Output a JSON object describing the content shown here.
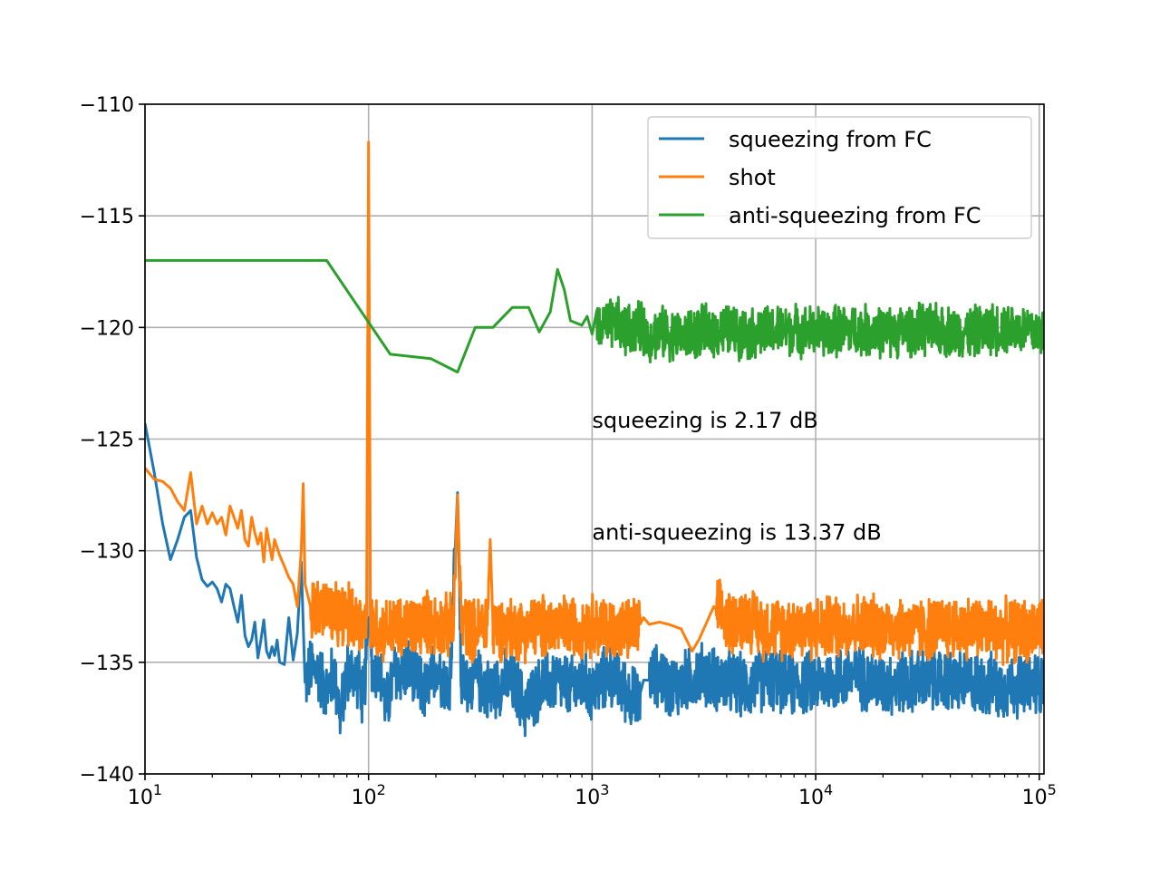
{
  "chart_data": {
    "type": "line",
    "title": "",
    "xlabel": "",
    "ylabel": "",
    "xscale": "log",
    "xlim": [
      10,
      105000
    ],
    "ylim": [
      -140,
      -110
    ],
    "grid": true,
    "legend_placement": "top-right",
    "x_ticks": [
      {
        "value": 10,
        "base": "10",
        "exp": "1"
      },
      {
        "value": 100,
        "base": "10",
        "exp": "2"
      },
      {
        "value": 1000,
        "base": "10",
        "exp": "3"
      },
      {
        "value": 10000,
        "base": "10",
        "exp": "4"
      },
      {
        "value": 100000,
        "base": "10",
        "exp": "5"
      }
    ],
    "y_ticks": [
      {
        "value": -110,
        "label": "−110"
      },
      {
        "value": -115,
        "label": "−115"
      },
      {
        "value": -120,
        "label": "−120"
      },
      {
        "value": -125,
        "label": "−125"
      },
      {
        "value": -130,
        "label": "−130"
      },
      {
        "value": -135,
        "label": "−135"
      },
      {
        "value": -140,
        "label": "−140"
      }
    ],
    "series": [
      {
        "name": "squeezing from FC",
        "color": "#1f77b4",
        "points": [
          [
            10,
            -124.3
          ],
          [
            11,
            -126.5
          ],
          [
            12,
            -128.8
          ],
          [
            13,
            -130.4
          ],
          [
            14,
            -129.5
          ],
          [
            15,
            -128.5
          ],
          [
            16,
            -128.2
          ],
          [
            17,
            -130.3
          ],
          [
            18,
            -131.3
          ],
          [
            19,
            -131.6
          ],
          [
            20,
            -131.4
          ],
          [
            21,
            -131.7
          ],
          [
            22,
            -132.3
          ],
          [
            23,
            -131.5
          ],
          [
            24,
            -131.7
          ],
          [
            25,
            -132.5
          ],
          [
            26,
            -133.2
          ],
          [
            27,
            -132.0
          ],
          [
            28,
            -133.8
          ],
          [
            29,
            -134.3
          ],
          [
            30,
            -134.0
          ],
          [
            31,
            -133.2
          ],
          [
            32,
            -134.8
          ],
          [
            33,
            -134.0
          ],
          [
            34,
            -133.1
          ],
          [
            35,
            -134.5
          ],
          [
            36,
            -134.8
          ],
          [
            37,
            -134.3
          ],
          [
            38,
            -134.7
          ],
          [
            39,
            -134.0
          ],
          [
            40,
            -135.0
          ],
          [
            42,
            -135.1
          ],
          [
            44,
            -133.0
          ],
          [
            46,
            -134.9
          ],
          [
            48,
            -133.7
          ],
          [
            50,
            -130.5
          ],
          [
            52,
            -135.9
          ],
          [
            55,
            -135.3
          ],
          [
            60,
            -135.5
          ],
          [
            65,
            -136.3
          ],
          [
            70,
            -135.4
          ],
          [
            75,
            -137.4
          ],
          [
            80,
            -135.4
          ],
          [
            90,
            -135.6
          ],
          [
            95,
            -136.8
          ],
          [
            100,
            -133.0
          ],
          [
            105,
            -135.6
          ],
          [
            110,
            -135.1
          ],
          [
            120,
            -137.0
          ],
          [
            130,
            -135.5
          ],
          [
            150,
            -135.3
          ],
          [
            180,
            -136.4
          ],
          [
            200,
            -135.1
          ],
          [
            230,
            -136.2
          ],
          [
            250,
            -127.4
          ],
          [
            260,
            -136.0
          ],
          [
            300,
            -135.7
          ],
          [
            350,
            -136.3
          ],
          [
            400,
            -135.8
          ],
          [
            450,
            -136.0
          ],
          [
            500,
            -137.0
          ],
          [
            600,
            -136.0
          ],
          [
            700,
            -135.8
          ],
          [
            800,
            -136.2
          ],
          [
            900,
            -135.9
          ],
          [
            1000,
            -136.3
          ],
          [
            1200,
            -135.5
          ],
          [
            1400,
            -136.2
          ],
          [
            1600,
            -136.8
          ],
          [
            1700,
            -135.8
          ],
          [
            1800,
            -135.8
          ],
          [
            2000,
            -135.5
          ],
          [
            2200,
            -136.1
          ],
          [
            2500,
            -136.0
          ],
          [
            3000,
            -135.5
          ],
          [
            4000,
            -135.9
          ],
          [
            5000,
            -136.1
          ],
          [
            6000,
            -135.7
          ],
          [
            8000,
            -136.0
          ],
          [
            10000,
            -135.9
          ],
          [
            15000,
            -135.6
          ],
          [
            20000,
            -136.0
          ],
          [
            30000,
            -135.8
          ],
          [
            50000,
            -135.9
          ],
          [
            70000,
            -136.1
          ],
          [
            100000,
            -135.9
          ]
        ],
        "noise_start": 52,
        "noise_amp": 1.6,
        "noise_skip": [
          [
            98,
            102
          ],
          [
            245,
            255
          ],
          [
            1640,
            1800
          ]
        ]
      },
      {
        "name": "shot",
        "color": "#ff7f0e",
        "points": [
          [
            10,
            -126.3
          ],
          [
            11,
            -126.8
          ],
          [
            12,
            -126.9
          ],
          [
            13,
            -127.2
          ],
          [
            14,
            -127.8
          ],
          [
            15,
            -128.2
          ],
          [
            16,
            -126.5
          ],
          [
            17,
            -128.8
          ],
          [
            18,
            -128.0
          ],
          [
            19,
            -128.8
          ],
          [
            20,
            -128.3
          ],
          [
            21,
            -128.8
          ],
          [
            22,
            -128.5
          ],
          [
            23,
            -129.3
          ],
          [
            24,
            -128.0
          ],
          [
            25,
            -128.5
          ],
          [
            26,
            -129.0
          ],
          [
            27,
            -128.2
          ],
          [
            28,
            -129.5
          ],
          [
            29,
            -129.8
          ],
          [
            30,
            -128.5
          ],
          [
            31,
            -129.2
          ],
          [
            32,
            -129.7
          ],
          [
            33,
            -129.2
          ],
          [
            34,
            -130.5
          ],
          [
            35,
            -129.0
          ],
          [
            36,
            -129.7
          ],
          [
            37,
            -130.4
          ],
          [
            38,
            -129.5
          ],
          [
            40,
            -130.2
          ],
          [
            42,
            -130.7
          ],
          [
            44,
            -131.2
          ],
          [
            46,
            -131.5
          ],
          [
            48,
            -132.5
          ],
          [
            50,
            -130.0
          ],
          [
            51,
            -127.0
          ],
          [
            52,
            -131.5
          ],
          [
            55,
            -132.5
          ],
          [
            60,
            -132.7
          ],
          [
            65,
            -132.5
          ],
          [
            70,
            -133.0
          ],
          [
            80,
            -132.8
          ],
          [
            90,
            -133.2
          ],
          [
            95,
            -133.3
          ],
          [
            98,
            -133.0
          ],
          [
            100,
            -111.7
          ],
          [
            102,
            -133.2
          ],
          [
            110,
            -133.5
          ],
          [
            120,
            -133.5
          ],
          [
            130,
            -133.5
          ],
          [
            150,
            -133.5
          ],
          [
            180,
            -133.2
          ],
          [
            200,
            -133.3
          ],
          [
            240,
            -133.4
          ],
          [
            250,
            -127.5
          ],
          [
            260,
            -133.2
          ],
          [
            300,
            -133.6
          ],
          [
            340,
            -133.2
          ],
          [
            350,
            -129.5
          ],
          [
            360,
            -133.4
          ],
          [
            400,
            -133.5
          ],
          [
            500,
            -133.5
          ],
          [
            600,
            -133.4
          ],
          [
            800,
            -133.4
          ],
          [
            1000,
            -133.3
          ],
          [
            1200,
            -133.5
          ],
          [
            1400,
            -133.6
          ],
          [
            1600,
            -133.5
          ],
          [
            1700,
            -133.0
          ],
          [
            1800,
            -133.3
          ],
          [
            2000,
            -133.2
          ],
          [
            2200,
            -133.3
          ],
          [
            2500,
            -133.5
          ],
          [
            2800,
            -134.5
          ],
          [
            3000,
            -134.0
          ],
          [
            3500,
            -132.5
          ],
          [
            4000,
            -133.2
          ],
          [
            5000,
            -133.0
          ],
          [
            6000,
            -133.5
          ],
          [
            8000,
            -133.4
          ],
          [
            10000,
            -133.5
          ],
          [
            15000,
            -133.3
          ],
          [
            20000,
            -133.4
          ],
          [
            30000,
            -133.5
          ],
          [
            50000,
            -133.4
          ],
          [
            70000,
            -133.6
          ],
          [
            100000,
            -133.5
          ]
        ],
        "noise_start": 55,
        "noise_amp": 1.6,
        "noise_skip": [
          [
            98,
            102
          ],
          [
            245,
            255
          ],
          [
            345,
            355
          ],
          [
            1640,
            3600
          ]
        ]
      },
      {
        "name": "anti-squeezing from FC",
        "color": "#2ca02c",
        "points": [
          [
            10,
            -117.0
          ],
          [
            65,
            -117.0
          ],
          [
            125,
            -121.2
          ],
          [
            190,
            -121.4
          ],
          [
            250,
            -122.0
          ],
          [
            300,
            -120.0
          ],
          [
            360,
            -120.0
          ],
          [
            440,
            -119.1
          ],
          [
            520,
            -119.1
          ],
          [
            580,
            -120.2
          ],
          [
            650,
            -119.3
          ],
          [
            700,
            -117.4
          ],
          [
            750,
            -118.3
          ],
          [
            800,
            -119.7
          ],
          [
            900,
            -119.9
          ],
          [
            950,
            -119.5
          ],
          [
            1000,
            -120.3
          ],
          [
            1100,
            -120.0
          ],
          [
            1300,
            -119.8
          ],
          [
            1400,
            -120.2
          ],
          [
            1600,
            -119.9
          ],
          [
            1800,
            -120.4
          ],
          [
            2000,
            -120.2
          ],
          [
            2500,
            -120.4
          ],
          [
            3000,
            -120.2
          ],
          [
            4000,
            -120.1
          ],
          [
            5000,
            -120.3
          ],
          [
            6000,
            -120.2
          ],
          [
            8000,
            -120.1
          ],
          [
            10000,
            -120.2
          ],
          [
            15000,
            -120.1
          ],
          [
            20000,
            -120.2
          ],
          [
            30000,
            -120.1
          ],
          [
            50000,
            -120.2
          ],
          [
            70000,
            -120.0
          ],
          [
            100000,
            -120.2
          ]
        ],
        "noise_start": 1050,
        "noise_amp": 1.3,
        "noise_skip": []
      }
    ],
    "annotations": [
      {
        "text": "squeezing is 2.17 dB",
        "x": 1000,
        "y": -124.5
      },
      {
        "text": "anti-squeezing is 13.37 dB",
        "x": 1000,
        "y": -129.5
      }
    ]
  }
}
